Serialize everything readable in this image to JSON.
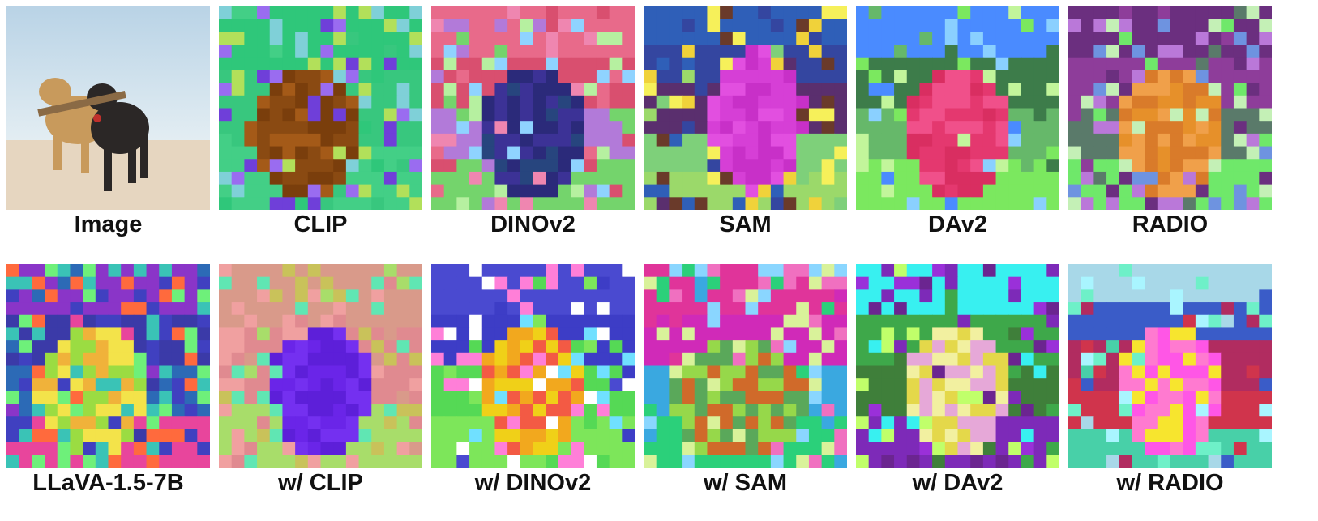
{
  "figure": {
    "rows": [
      {
        "panels": [
          {
            "label": "Image",
            "kind": "photo",
            "photo": {
              "sky_top": "#b9d3e6",
              "sky_bottom": "#e4eef3",
              "sand": "#e6d6c0",
              "dog_light": "#c89a5c",
              "dog_dark": "#2b2726",
              "stick": "#8a6a45",
              "collar": "#c0302c"
            }
          },
          {
            "label": "CLIP",
            "kind": "feature",
            "seed": 11,
            "rows_cols": 16,
            "bands": [
              "#2fc77a",
              "#38c77e",
              "#43cf86"
            ],
            "subject": [
              "#8a4a12",
              "#a45a18",
              "#7a3e0c"
            ],
            "noise": [
              "#9a6cf0",
              "#7fd0d8",
              "#b2e05a",
              "#6f3fd9"
            ],
            "subject_shape": "left-blob",
            "noise_rate": 0.35
          },
          {
            "label": "DINOv2",
            "kind": "feature",
            "seed": 23,
            "rows_cols": 16,
            "bands": [
              "#e86a8a",
              "#d94f6f",
              "#b27ad9",
              "#74d46c"
            ],
            "subject": [
              "#2b2a7a",
              "#3c3296",
              "#27457e"
            ],
            "noise": [
              "#8fd3ff",
              "#b6f0a0",
              "#ef86b0"
            ],
            "subject_shape": "center-blob",
            "noise_rate": 0.2
          },
          {
            "label": "SAM",
            "kind": "feature",
            "seed": 37,
            "rows_cols": 16,
            "bands": [
              "#2f5fb8",
              "#3446a0",
              "#5a2f6e",
              "#7ed07a",
              "#9bd96a"
            ],
            "subject": [
              "#d63fd6",
              "#c830c8",
              "#e24fe0"
            ],
            "noise": [
              "#f0d23a",
              "#6a3a2a",
              "#f6f05a"
            ],
            "subject_shape": "right-blob",
            "noise_rate": 0.15
          },
          {
            "label": "DAv2",
            "kind": "feature",
            "seed": 41,
            "rows_cols": 16,
            "bands": [
              "#4a8bff",
              "#3d7c4a",
              "#66b86a",
              "#7be85f"
            ],
            "subject": [
              "#e4386f",
              "#d92e61",
              "#f0508a"
            ],
            "noise": [
              "#8ad0ff",
              "#c2f59b"
            ],
            "subject_shape": "center-blob",
            "noise_rate": 0.12
          },
          {
            "label": "RADIO",
            "kind": "feature",
            "seed": 53,
            "rows_cols": 16,
            "bands": [
              "#6b2f7f",
              "#8e3d9a",
              "#5a7a6a",
              "#6fe86a"
            ],
            "subject": [
              "#e6902a",
              "#f0a04a",
              "#d97b2a"
            ],
            "noise": [
              "#ba78d9",
              "#6e93e0",
              "#c4f0b6"
            ],
            "subject_shape": "center-blob",
            "noise_rate": 0.22
          }
        ]
      },
      {
        "panels": [
          {
            "label": "LLaVA-1.5-7B",
            "kind": "feature",
            "seed": 67,
            "rows_cols": 16,
            "bands": [
              "#8a35c8",
              "#3b3aa8",
              "#2c6ab6",
              "#e8459c"
            ],
            "subject": [
              "#f3e34a",
              "#9bdc42",
              "#f0b23a"
            ],
            "noise": [
              "#3ac3b6",
              "#ff6a3d",
              "#6ef07a",
              "#4040c0"
            ],
            "subject_shape": "left-blob",
            "noise_rate": 0.45
          },
          {
            "label": "w/ CLIP",
            "kind": "feature",
            "seed": 71,
            "rows_cols": 16,
            "bands": [
              "#d99a8a",
              "#e08a90",
              "#a8dd6a"
            ],
            "subject": [
              "#6a25e8",
              "#5d1fd9",
              "#7430f0"
            ],
            "noise": [
              "#60e6b3",
              "#c9c25a",
              "#f0a0a0"
            ],
            "subject_shape": "center-blob",
            "noise_rate": 0.3
          },
          {
            "label": "w/ DINOv2",
            "kind": "feature",
            "seed": 83,
            "rows_cols": 16,
            "bands": [
              "#4a4ad0",
              "#3d3dc6",
              "#55d955",
              "#7de65a"
            ],
            "subject": [
              "#f0d018",
              "#f2a81e",
              "#f35a44"
            ],
            "noise": [
              "#ff7fd8",
              "#70e0ff",
              "#ffffff"
            ],
            "subject_shape": "center-blob",
            "noise_rate": 0.2
          },
          {
            "label": "w/ SAM",
            "kind": "feature",
            "seed": 97,
            "rows_cols": 16,
            "bands": [
              "#e0349a",
              "#d02ab8",
              "#3aa8e0",
              "#2bd07a"
            ],
            "subject": [
              "#96d84a",
              "#d06a2a",
              "#5aa85a"
            ],
            "noise": [
              "#f070c0",
              "#8ad6ff",
              "#d9f29a"
            ],
            "subject_shape": "wide-blob",
            "noise_rate": 0.25
          },
          {
            "label": "w/ DAv2",
            "kind": "feature",
            "seed": 101,
            "rows_cols": 16,
            "bands": [
              "#38f0f0",
              "#3ea84a",
              "#3f7f3a",
              "#7d2ab8"
            ],
            "subject": [
              "#e4d84a",
              "#e6a8d8",
              "#f2f0a0"
            ],
            "noise": [
              "#9a30d9",
              "#6b2590",
              "#c0ff6a"
            ],
            "subject_shape": "center-blob",
            "noise_rate": 0.2
          },
          {
            "label": "w/ RADIO",
            "kind": "feature",
            "seed": 113,
            "rows_cols": 16,
            "bands": [
              "#a8d8e8",
              "#3a5cc8",
              "#b12c60",
              "#d0344c",
              "#48d0a8"
            ],
            "subject": [
              "#f7e52e",
              "#ff56e6",
              "#ff7ad0"
            ],
            "noise": [
              "#6ef0c8",
              "#a9f5ff"
            ],
            "subject_shape": "center-blob",
            "noise_rate": 0.12
          }
        ]
      }
    ]
  }
}
